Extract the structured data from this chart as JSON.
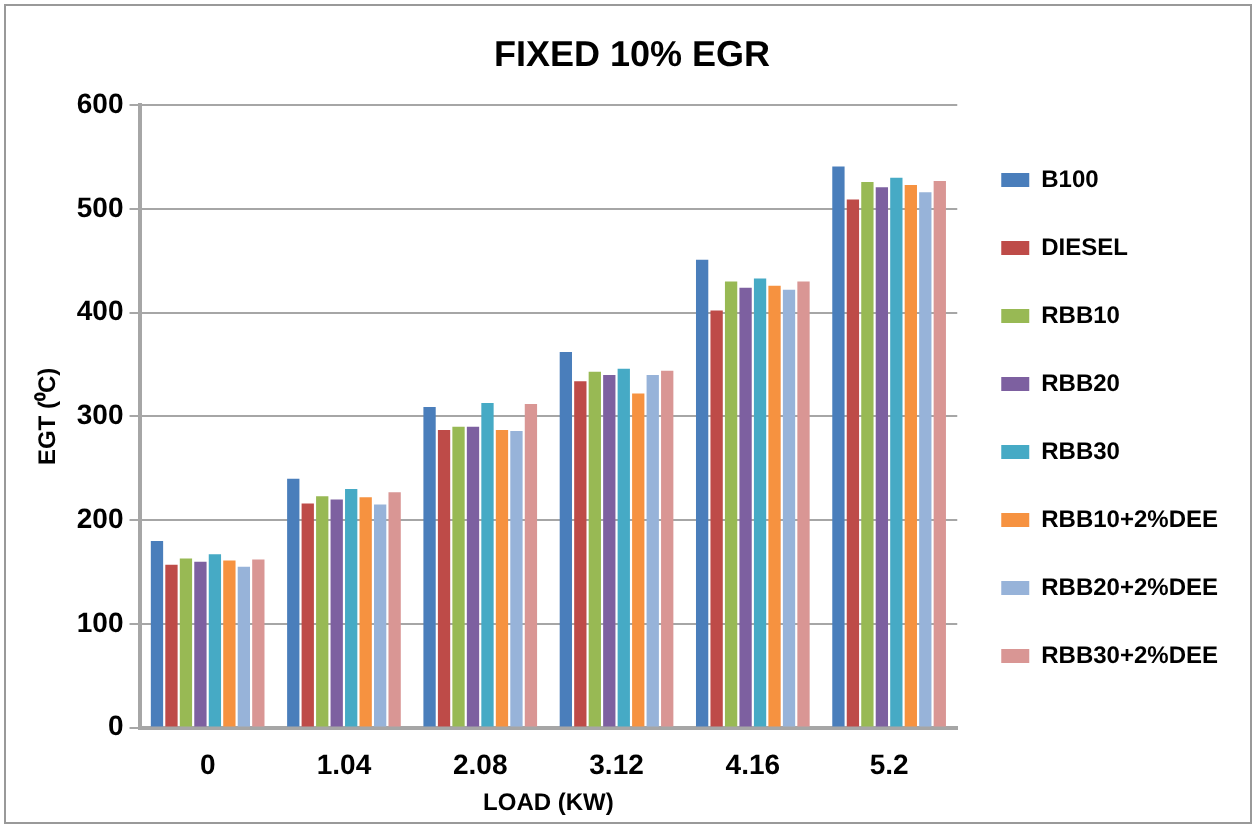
{
  "chart_data": {
    "type": "bar",
    "title": "FIXED 10% EGR",
    "xlabel": "LOAD (KW)",
    "ylabel": "EGT (⁰C)",
    "categories": [
      "0",
      "1.04",
      "2.08",
      "3.12",
      "4.16",
      "5.2"
    ],
    "series": [
      {
        "name": "B100",
        "color": "#4a7ebb",
        "values": [
          180,
          240,
          309,
          362,
          451,
          541
        ]
      },
      {
        "name": "DIESEL",
        "color": "#be4b48",
        "values": [
          157,
          216,
          287,
          334,
          402,
          509
        ]
      },
      {
        "name": "RBB10",
        "color": "#98b954",
        "values": [
          163,
          223,
          290,
          343,
          430,
          526
        ]
      },
      {
        "name": "RBB20",
        "color": "#7d60a0",
        "values": [
          160,
          220,
          290,
          340,
          424,
          521
        ]
      },
      {
        "name": "RBB30",
        "color": "#46aac5",
        "values": [
          167,
          230,
          313,
          346,
          433,
          530
        ]
      },
      {
        "name": "RBB10+2%DEE",
        "color": "#f69240",
        "values": [
          161,
          222,
          287,
          322,
          426,
          523
        ]
      },
      {
        "name": "RBB20+2%DEE",
        "color": "#97b3d9",
        "values": [
          155,
          215,
          286,
          340,
          422,
          516
        ]
      },
      {
        "name": "RBB30+2%DEE",
        "color": "#d99694",
        "values": [
          162,
          227,
          312,
          344,
          430,
          527
        ]
      }
    ],
    "ylim": [
      0,
      600
    ],
    "yticks": [
      0,
      100,
      200,
      300,
      400,
      500,
      600
    ],
    "grid": "y",
    "legend": "right"
  }
}
